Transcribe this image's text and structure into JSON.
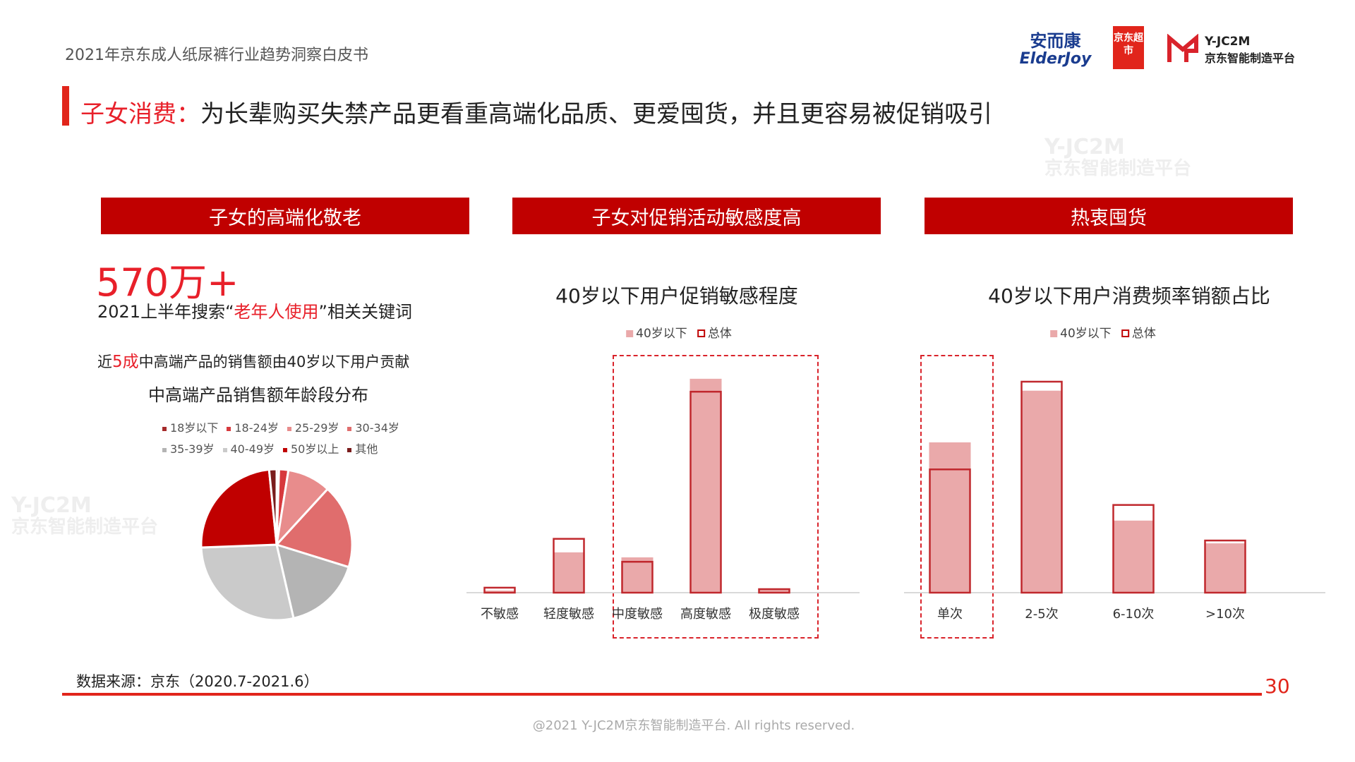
{
  "header": {
    "report_title": "2021年京东成人纸尿裤行业趋势洞察白皮书",
    "logos": {
      "elderjoy_cn": "安而康",
      "elderjoy_en": "ElderJoy",
      "jd_market": "京东超市",
      "yjc2m": "Y-JC2M",
      "yjc2m_cn": "京东智能制造平台"
    }
  },
  "title": {
    "highlight": "子女消费：",
    "text": "为长辈购买失禁产品更看重高端化品质、更爱囤货，并且更容易被促销吸引"
  },
  "sections": [
    {
      "label": "子女的高端化敬老"
    },
    {
      "label": "子女对促销活动敏感度高"
    },
    {
      "label": "热衷囤货"
    }
  ],
  "left": {
    "big_number": "570万+",
    "search_prefix": "2021上半年搜索“",
    "search_keyword": "老年人使用",
    "search_suffix": "”相关关键词",
    "contrib_prefix": "近",
    "contrib_highlight": "5成",
    "contrib_suffix": "中高端产品的销售额由40岁以下用户贡献"
  },
  "colors": {
    "accent": "#c00000",
    "title_red": "#e8202a",
    "bar_fill": "#eaa9aa",
    "bar_outline": "#c0282d"
  },
  "chart_data": [
    {
      "type": "pie",
      "title": "中高端产品销售额年龄段分布",
      "categories": [
        "18岁以下",
        "18-24岁",
        "25-29岁",
        "30-34岁",
        "35-39岁",
        "40-49岁",
        "50岁以上",
        "其他"
      ],
      "values": [
        0.5,
        2,
        9.3,
        18,
        16.6,
        28,
        24,
        1.6
      ],
      "colors": [
        "#a52a2a",
        "#d7393d",
        "#e88c8c",
        "#e06d6d",
        "#b4b4b4",
        "#cacaca",
        "#c00000",
        "#7a1c1c"
      ],
      "legend": "top"
    },
    {
      "type": "bar",
      "title": "40岁以下用户促销敏感程度",
      "categories": [
        "不敏感",
        "轻度敏感",
        "中度敏感",
        "高度敏感",
        "极度敏感"
      ],
      "series": [
        {
          "name": "40岁以下",
          "style": "filled",
          "values": [
            0.7,
            13.7,
            12,
            72.7,
            1
          ]
        },
        {
          "name": "总体",
          "style": "outline",
          "values": [
            1.7,
            18.3,
            10.5,
            68.3,
            1.2
          ]
        }
      ],
      "highlight": [
        "中度敏感",
        "高度敏感",
        "极度敏感"
      ],
      "legend": "top"
    },
    {
      "type": "bar",
      "title": "40岁以下用户消费频率销额占比",
      "categories": [
        "单次",
        "2-5次",
        "6-10次",
        ">10次"
      ],
      "series": [
        {
          "name": "40岁以下",
          "style": "filled",
          "values": [
            31.7,
            42.6,
            15.2,
            10.4
          ]
        },
        {
          "name": "总体",
          "style": "outline",
          "values": [
            26,
            44.5,
            18.5,
            11
          ]
        }
      ],
      "highlight": [
        "单次"
      ],
      "legend": "top"
    }
  ],
  "footer": {
    "source": "数据来源：京东（2020.7-2021.6）",
    "page_number": "30",
    "copyright": "@2021 Y-JC2M京东智能制造平台. All rights reserved."
  },
  "watermark": {
    "en": "Y-JC2M",
    "cn": "京东智能制造平台"
  }
}
